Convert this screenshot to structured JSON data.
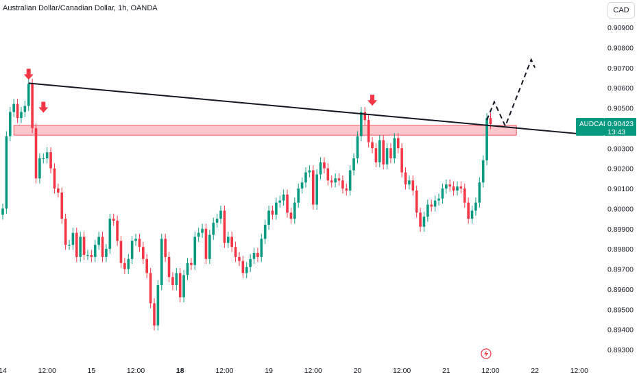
{
  "header": {
    "title": "Australian Dollar/Canadian Dollar, 1h, OANDA"
  },
  "currency_button": {
    "label": "CAD"
  },
  "price_badge": {
    "symbol": "AUDCAD",
    "price": "0.90423",
    "countdown": "13:43",
    "color": "#089981"
  },
  "colors": {
    "up": "#089981",
    "down": "#f23645",
    "zone": "#f23645",
    "trendline": "#131722",
    "arrow": "#f23645"
  },
  "chart_data": {
    "type": "candlestick",
    "symbol": "AUDCAD",
    "timeframe": "1h",
    "source": "OANDA",
    "currency": "CAD",
    "yticks": [
      "0.90900",
      "0.90800",
      "0.90700",
      "0.90600",
      "0.90500",
      "0.90400",
      "0.90300",
      "0.90200",
      "0.90100",
      "0.90000",
      "0.89900",
      "0.89800",
      "0.89700",
      "0.89600",
      "0.89500",
      "0.89400",
      "0.89300"
    ],
    "ylim": [
      0.8926,
      0.9096
    ],
    "xticks": [
      {
        "label": "14",
        "bar": 0
      },
      {
        "label": "12:00",
        "bar": 12
      },
      {
        "label": "15",
        "bar": 24
      },
      {
        "label": "12:00",
        "bar": 36
      },
      {
        "label": "18",
        "bar": 48,
        "bold": true
      },
      {
        "label": "12:00",
        "bar": 60
      },
      {
        "label": "19",
        "bar": 72
      },
      {
        "label": "12:00",
        "bar": 84
      },
      {
        "label": "20",
        "bar": 96
      },
      {
        "label": "12:00",
        "bar": 108
      },
      {
        "label": "21",
        "bar": 120
      },
      {
        "label": "12:00",
        "bar": 132
      },
      {
        "label": "22",
        "bar": 144
      },
      {
        "label": "12:00",
        "bar": 156
      }
    ],
    "candles_close": [
      0.9,
      0.9036,
      0.9048,
      0.9052,
      0.9045,
      0.9048,
      0.9051,
      0.9062,
      0.904,
      0.9015,
      0.9025,
      0.9025,
      0.9028,
      0.902,
      0.901,
      0.9008,
      0.8995,
      0.8982,
      0.8982,
      0.8988,
      0.8976,
      0.8986,
      0.8977,
      0.8977,
      0.8976,
      0.8982,
      0.8986,
      0.8976,
      0.898,
      0.8995,
      0.8994,
      0.8984,
      0.8973,
      0.897,
      0.8975,
      0.8984,
      0.8985,
      0.8981,
      0.8975,
      0.8968,
      0.8953,
      0.8942,
      0.8962,
      0.8985,
      0.8976,
      0.8966,
      0.8962,
      0.8968,
      0.8956,
      0.8967,
      0.8973,
      0.8972,
      0.8986,
      0.8988,
      0.899,
      0.8975,
      0.8987,
      0.8993,
      0.8995,
      0.8999,
      0.8983,
      0.8986,
      0.8981,
      0.8976,
      0.8974,
      0.8968,
      0.8971,
      0.8975,
      0.8978,
      0.8976,
      0.8985,
      0.8992,
      0.8999,
      0.8997,
      0.9003,
      0.9004,
      0.9007,
      0.8998,
      0.8995,
      0.9003,
      0.901,
      0.9013,
      0.9018,
      0.9019,
      0.9002,
      0.9017,
      0.9023,
      0.902,
      0.9014,
      0.9013,
      0.9015,
      0.9014,
      0.901,
      0.9009,
      0.9019,
      0.9025,
      0.9036,
      0.9048,
      0.9044,
      0.9033,
      0.903,
      0.9023,
      0.9034,
      0.9022,
      0.903,
      0.9025,
      0.9035,
      0.903,
      0.9018,
      0.9012,
      0.9014,
      0.9009,
      0.8998,
      0.8991,
      0.8996,
      0.9002,
      0.9001,
      0.9004,
      0.9005,
      0.901,
      0.9012,
      0.9011,
      0.9009,
      0.9011,
      0.901,
      0.9003,
      0.8995,
      0.8999,
      0.9003,
      0.9013,
      0.9024,
      0.9045,
      0.9042
    ],
    "annotations": [
      {
        "type": "trendline",
        "from": {
          "bar": 7,
          "price": 0.90623
        },
        "to": {
          "bar": 157,
          "price": 0.9037
        }
      },
      {
        "type": "zone",
        "bar_start": 3,
        "bar_end": 139,
        "price_low": 0.90365,
        "price_high": 0.90413
      },
      {
        "type": "arrow",
        "bar": 7,
        "price": 0.9064,
        "direction": "down"
      },
      {
        "type": "arrow",
        "bar": 11,
        "price": 0.90476,
        "direction": "down"
      },
      {
        "type": "arrow",
        "bar": 100,
        "price": 0.90511,
        "direction": "down"
      },
      {
        "type": "projection",
        "points": [
          {
            "bar": 131,
            "price": 0.9044
          },
          {
            "bar": 133,
            "price": 0.9053
          },
          {
            "bar": 136,
            "price": 0.9041
          },
          {
            "bar": 143,
            "price": 0.9074
          },
          {
            "bar": 144,
            "price": 0.907
          }
        ]
      }
    ]
  }
}
